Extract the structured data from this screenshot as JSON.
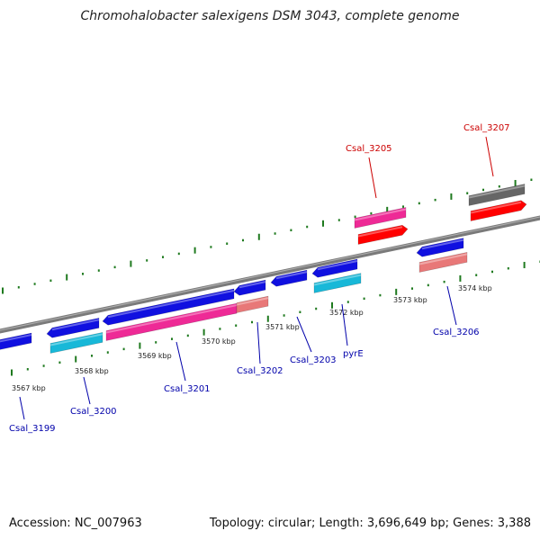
{
  "title": "Chromohalobacter salexigens DSM 3043, complete genome",
  "accession": "Accession: NC_007963",
  "summary": "Topology: circular; Length: 3,696,649 bp; Genes: 3,388",
  "scale_labels": [
    "3567 kbp",
    "3568 kbp",
    "3569 kbp",
    "3570 kbp",
    "3571 kbp",
    "3572 kbp",
    "3573 kbp",
    "3574 kbp"
  ],
  "colors": {
    "backbone": "#7a7a7a",
    "tick": "#1f7a1f",
    "label_forward": "#cc0000",
    "label_reverse": "#0000aa",
    "gene_blue": "#1010e0",
    "gene_cyan": "#18b8d8",
    "gene_pink": "#ee2a96",
    "gene_salmon": "#e87878",
    "gene_red": "#ff0000",
    "gene_gray": "#666666"
  },
  "genes": [
    {
      "name": "Csal_3199",
      "strand": "reverse"
    },
    {
      "name": "Csal_3200",
      "strand": "reverse"
    },
    {
      "name": "Csal_3201",
      "strand": "reverse"
    },
    {
      "name": "Csal_3202",
      "strand": "reverse"
    },
    {
      "name": "Csal_3203",
      "strand": "reverse"
    },
    {
      "name": "pyrE",
      "strand": "reverse"
    },
    {
      "name": "Csal_3205",
      "strand": "forward"
    },
    {
      "name": "Csal_3206",
      "strand": "reverse"
    },
    {
      "name": "Csal_3207",
      "strand": "forward"
    }
  ]
}
